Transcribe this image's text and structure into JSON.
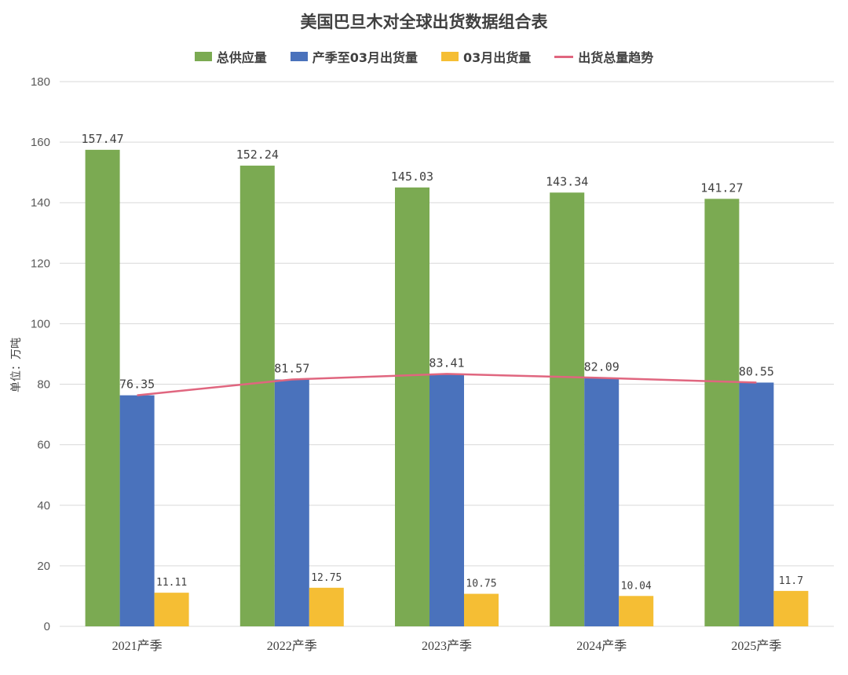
{
  "chart_data": {
    "type": "bar",
    "title": "美国巴旦木对全球出货数据组合表",
    "ylabel": "单位：万吨",
    "xlabel": "",
    "ylim": [
      0,
      180
    ],
    "yticks": [
      0,
      20,
      40,
      60,
      80,
      100,
      120,
      140,
      160,
      180
    ],
    "grid": true,
    "legend_position": "top",
    "categories": [
      "2021产季",
      "2022产季",
      "2023产季",
      "2024产季",
      "2025产季"
    ],
    "series": [
      {
        "name": "总供应量",
        "type": "bar",
        "color": "#7BAA52",
        "values": [
          157.47,
          152.24,
          145.03,
          143.34,
          141.27
        ],
        "labels": [
          "157.47",
          "152.24",
          "145.03",
          "143.34",
          "141.27"
        ]
      },
      {
        "name": "产季至03月出货量",
        "type": "bar",
        "color": "#4A72BC",
        "values": [
          76.35,
          81.57,
          83.41,
          82.09,
          80.55
        ],
        "labels": [
          "76.35",
          "81.57",
          "83.41",
          "82.09",
          "80.55"
        ]
      },
      {
        "name": "03月出货量",
        "type": "bar",
        "color": "#F5BE34",
        "values": [
          11.11,
          12.75,
          10.75,
          10.04,
          11.7
        ],
        "labels": [
          "11.11",
          "12.75",
          "10.75",
          "10.04",
          "11.7"
        ]
      },
      {
        "name": "出货总量趋势",
        "type": "line",
        "color": "#E0667F",
        "values": [
          76.35,
          81.57,
          83.41,
          82.09,
          80.55
        ]
      }
    ]
  }
}
